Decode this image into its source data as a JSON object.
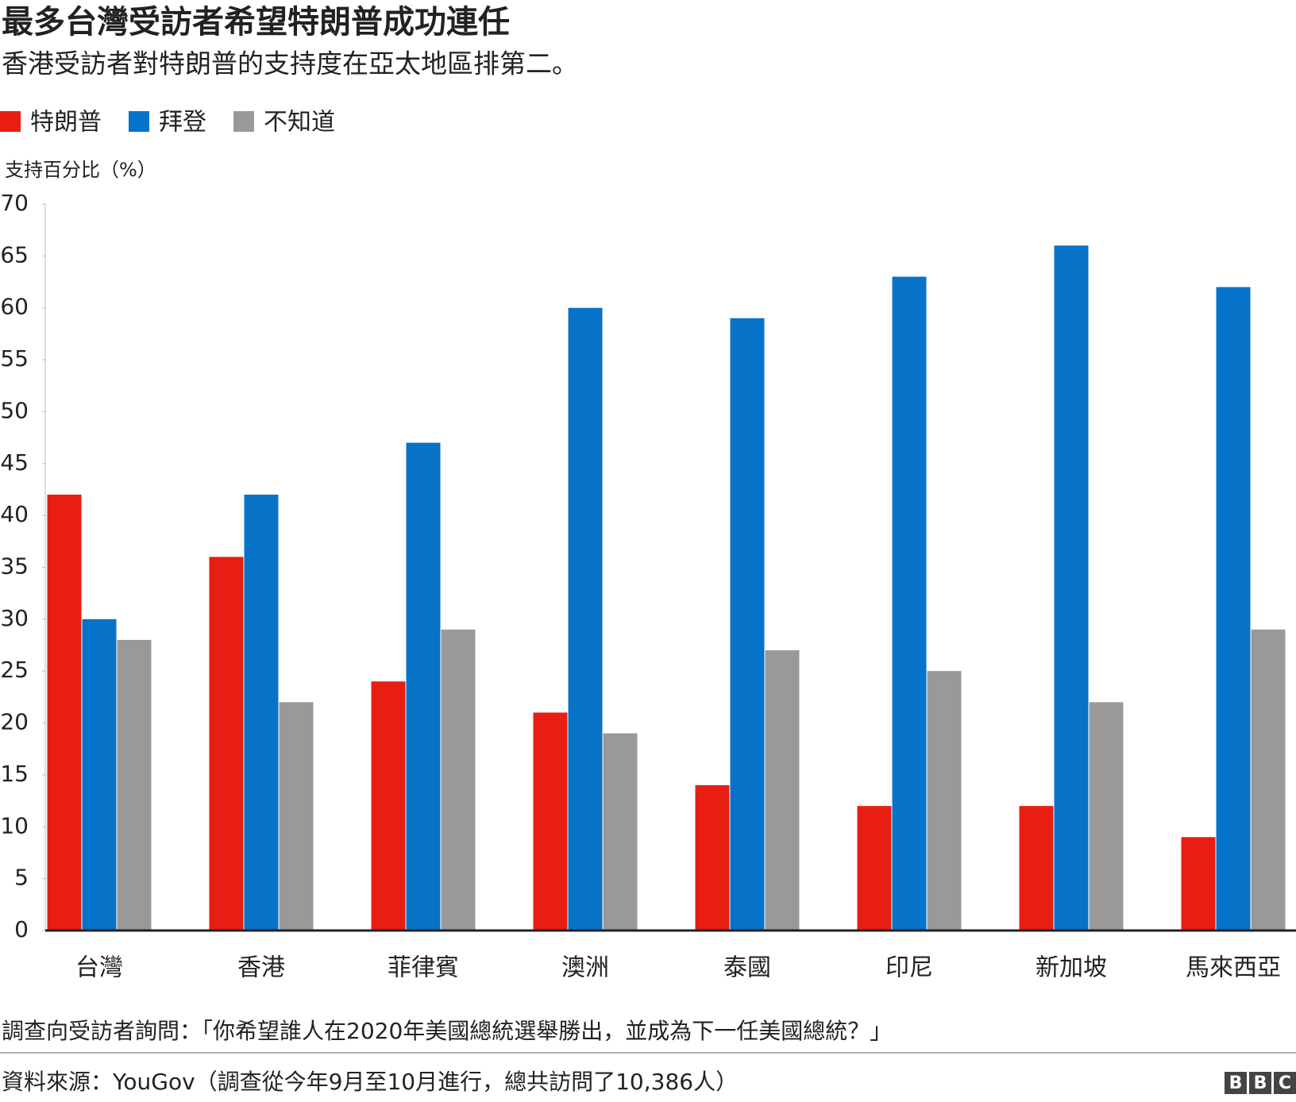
{
  "chart_data": {
    "type": "bar",
    "title": "最多台灣受訪者希望特朗普成功連任",
    "subtitle": "香港受訪者對特朗普的支持度在亞太地區排第二。",
    "y_label": "支持百分比（%）",
    "categories": [
      "台灣",
      "香港",
      "菲律賓",
      "澳洲",
      "泰國",
      "印尼",
      "新加坡",
      "馬來西亞"
    ],
    "series": [
      {
        "name": "特朗普",
        "color": "#e81e12",
        "values": [
          42,
          36,
          24,
          21,
          14,
          12,
          12,
          9
        ]
      },
      {
        "name": "拜登",
        "color": "#0673c9",
        "values": [
          30,
          42,
          47,
          60,
          59,
          63,
          66,
          62
        ]
      },
      {
        "name": "不知道",
        "color": "#999999",
        "values": [
          28,
          22,
          29,
          19,
          27,
          25,
          22,
          29
        ]
      }
    ],
    "ylim": [
      0,
      70
    ],
    "yticks": [
      0,
      5,
      10,
      15,
      20,
      25,
      30,
      35,
      40,
      45,
      50,
      55,
      60,
      65,
      70
    ],
    "note": "調查向受訪者詢問：「你希望誰人在2020年美國總統選舉勝出，並成為下一任美國總統？」",
    "source": "資料來源：YouGov（調查從今年9月至10月進行，總共訪問了10,386人）",
    "logo": [
      "B",
      "B",
      "C"
    ]
  }
}
